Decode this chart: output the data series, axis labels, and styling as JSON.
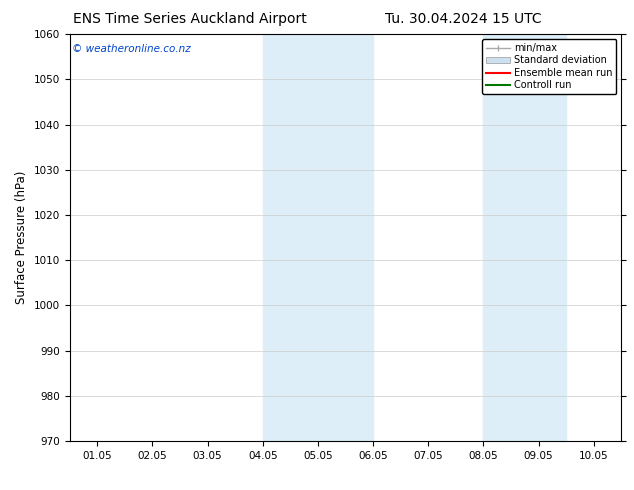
{
  "title_left": "ENS Time Series Auckland Airport",
  "title_right": "Tu. 30.04.2024 15 UTC",
  "ylabel": "Surface Pressure (hPa)",
  "ylim": [
    970,
    1060
  ],
  "yticks": [
    970,
    980,
    990,
    1000,
    1010,
    1020,
    1030,
    1040,
    1050,
    1060
  ],
  "xtick_labels": [
    "01.05",
    "02.05",
    "03.05",
    "04.05",
    "05.05",
    "06.05",
    "07.05",
    "08.05",
    "09.05",
    "10.05"
  ],
  "shaded_bands": [
    {
      "xmin": 3.0,
      "xmax": 5.0,
      "color": "#ddeef8"
    },
    {
      "xmin": 7.0,
      "xmax": 8.5,
      "color": "#ddeef8"
    }
  ],
  "watermark": "© weatheronline.co.nz",
  "watermark_color": "#0044cc",
  "background_color": "#ffffff",
  "legend_minmax_color": "#aaaaaa",
  "legend_std_color": "#cce0f0",
  "legend_ens_color": "#ff0000",
  "legend_ctrl_color": "#007700",
  "tick_label_fontsize": 7.5,
  "title_fontsize": 10,
  "ylabel_fontsize": 8.5
}
